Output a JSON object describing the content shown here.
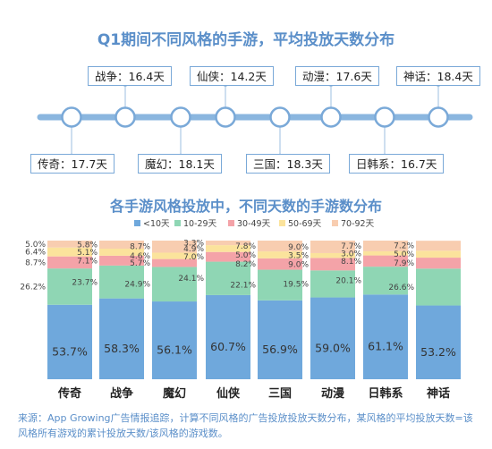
{
  "timeline": {
    "title": "Q1期间不同风格的手游，平均投放天数分布",
    "top_labels": [
      "战争：16.4天",
      "仙侠：14.2天",
      "动漫：17.6天",
      "神话：18.4天"
    ],
    "bottom_labels": [
      "传奇：17.7天",
      "魔幻：18.1天",
      "三国：18.3天",
      "日韩系：16.7天"
    ]
  },
  "chart_data": {
    "type": "bar",
    "title": "各手游风格投放中，不同天数的手游数分布",
    "categories": [
      "传奇",
      "战争",
      "魔幻",
      "仙侠",
      "三国",
      "动漫",
      "日韩系",
      "神话"
    ],
    "stacked": true,
    "ylim": [
      0,
      100
    ],
    "legend_position": "top",
    "series": [
      {
        "name": "<10天",
        "color": "#6fa8dc",
        "values": [
          53.7,
          58.3,
          56.1,
          60.7,
          56.9,
          59.0,
          61.1,
          53.2
        ],
        "labels": [
          "53.7%",
          "58.3%",
          "56.1%",
          "60.7%",
          "56.9%",
          "59.0%",
          "61.1%",
          "53.2%"
        ]
      },
      {
        "name": "10-29天",
        "color": "#8fd6b4",
        "values": [
          26.2,
          23.7,
          24.9,
          24.1,
          22.1,
          19.5,
          20.1,
          26.6
        ],
        "labels": [
          "26.2%",
          "23.7%",
          "24.9%",
          "24.1%",
          "22.1%",
          "19.5%",
          "20.1%",
          "26.6%"
        ]
      },
      {
        "name": "30-49天",
        "color": "#f4a3a8",
        "values": [
          8.7,
          7.1,
          5.7,
          7.0,
          8.2,
          9.0,
          8.1,
          7.9
        ],
        "labels": [
          "8.7%",
          "7.1%",
          "5.7%",
          "7.0%",
          "8.2%",
          "9.0%",
          "8.1%",
          "7.9%"
        ]
      },
      {
        "name": "50-69天",
        "color": "#fbe39c",
        "values": [
          6.4,
          5.1,
          4.6,
          4.9,
          5.0,
          3.5,
          3.0,
          5.0
        ],
        "labels": [
          "6.4%",
          "5.1%",
          "4.6%",
          "4.9%",
          "5.0%",
          "3.5%",
          "3.0%",
          "5.0%"
        ]
      },
      {
        "name": "70-92天",
        "color": "#f8cdb0",
        "values": [
          5.0,
          5.8,
          8.7,
          3.3,
          7.8,
          9.0,
          7.7,
          7.2
        ],
        "labels": [
          "5.0%",
          "5.8%",
          "8.7%",
          "3.3%",
          "7.8%",
          "9.0%",
          "7.7%",
          "7.2%"
        ]
      }
    ]
  },
  "source": "来源：App Growing广告情报追踪，计算不同风格的广告投放投放天数分布，某风格的平均投放天数=该风格所有游戏的累计投放天数/该风格的游戏数。",
  "colors": {
    "accent": "#5b8fc9",
    "timeline_line": "#8ab6df",
    "timeline_node": "#7aa9d8"
  }
}
